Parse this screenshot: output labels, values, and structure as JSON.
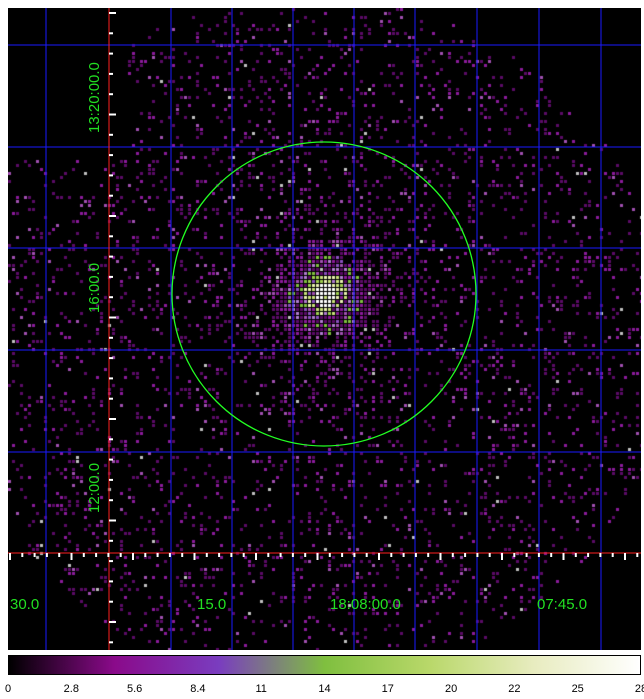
{
  "image": {
    "background": "#000000",
    "grid_color": "#1a1aff",
    "axis_color": "#ff2020",
    "label_color": "#22e022",
    "region_color": "#22ff22"
  },
  "ra_labels": [
    "30.0",
    "15.0",
    "18:08:00.0",
    "07:45.0"
  ],
  "dec_labels": [
    "13:20:00.0",
    "16:00.0",
    "12:00.0"
  ],
  "colorbar": {
    "ticks": [
      "0",
      "2.8",
      "5.6",
      "8.4",
      "11",
      "14",
      "17",
      "20",
      "22",
      "25",
      "28"
    ],
    "colors": [
      "#000000",
      "#8a0a8a",
      "#7a3dbf",
      "#7fbf3f",
      "#b9d86a",
      "#e8ecc0",
      "#ffffff"
    ]
  },
  "region": {
    "shape": "circle"
  }
}
